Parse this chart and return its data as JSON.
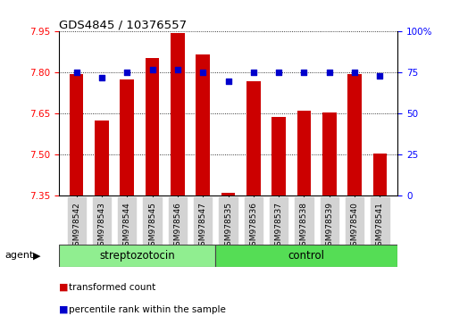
{
  "title": "GDS4845 / 10376557",
  "samples": [
    "GSM978542",
    "GSM978543",
    "GSM978544",
    "GSM978545",
    "GSM978546",
    "GSM978547",
    "GSM978535",
    "GSM978536",
    "GSM978537",
    "GSM978538",
    "GSM978539",
    "GSM978540",
    "GSM978541"
  ],
  "red_values": [
    7.795,
    7.625,
    7.775,
    7.855,
    7.945,
    7.865,
    7.36,
    7.77,
    7.64,
    7.66,
    7.655,
    7.795,
    7.505
  ],
  "blue_values": [
    75,
    72,
    75,
    77,
    77,
    75,
    70,
    75,
    75,
    75,
    75,
    75,
    73
  ],
  "ylim_left": [
    7.35,
    7.95
  ],
  "ylim_right": [
    0,
    100
  ],
  "y_ticks_left": [
    7.35,
    7.5,
    7.65,
    7.8,
    7.95
  ],
  "y_ticks_right": [
    0,
    25,
    50,
    75,
    100
  ],
  "group1_label": "streptozotocin",
  "group2_label": "control",
  "group1_count": 6,
  "group2_count": 7,
  "bar_color": "#cc0000",
  "dot_color": "#0000cc",
  "group1_bg": "#90ee90",
  "group2_bg": "#55dd55",
  "agent_label": "agent",
  "legend_red": "transformed count",
  "legend_blue": "percentile rank within the sample",
  "bar_width": 0.55,
  "figsize": [
    5.06,
    3.54
  ],
  "dpi": 100
}
